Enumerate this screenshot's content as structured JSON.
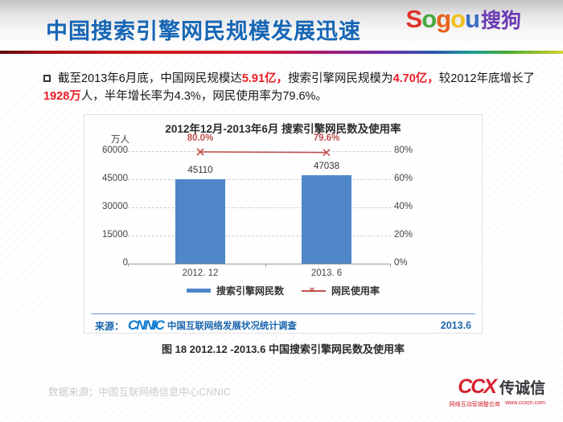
{
  "header": {
    "title": "中国搜索引擎网民规模发展迅速",
    "logo": {
      "word": [
        {
          "ch": "S",
          "color": "#e0342b"
        },
        {
          "ch": "o",
          "color": "#44a93c"
        },
        {
          "ch": "g",
          "color": "#e8611c"
        },
        {
          "ch": "o",
          "color": "#f2c01d"
        },
        {
          "ch": "u",
          "color": "#3a6cc4"
        }
      ],
      "cn": "搜狗",
      "cn_color": "#6a3ab2"
    }
  },
  "summary": {
    "segments": [
      {
        "text": "截至2013年6月底，中国网民规模达",
        "highlight": false
      },
      {
        "text": "5.91亿，",
        "highlight": true
      },
      {
        "text": "搜索引擎网民规模为",
        "highlight": false
      },
      {
        "text": "4.70亿，",
        "highlight": true
      },
      {
        "text": "较2012年底增长了",
        "highlight": false
      },
      {
        "text": "1928万",
        "highlight": true
      },
      {
        "text": "人，半年增长率为4.3%，网民使用率为79.6%。",
        "highlight": false
      }
    ]
  },
  "chart_data": {
    "type": "bar",
    "combo_line_overlay": true,
    "title": "2012年12月-2013年6月 搜索引擎网民数及使用率",
    "unit_label": "万人",
    "categories": [
      "2012. 12",
      "2013. 6"
    ],
    "series": [
      {
        "name": "搜索引擎网民数",
        "type": "bar",
        "axis": "left",
        "values": [
          45110,
          47038
        ],
        "color": "#4e86c8"
      },
      {
        "name": "网民使用率",
        "type": "line",
        "axis": "right",
        "values": [
          80.0,
          79.6
        ],
        "labels": [
          "80.0%",
          "79.6%"
        ],
        "color": "#c0504d",
        "marker": "x"
      }
    ],
    "left_axis": {
      "tick_labels": [
        "60000",
        "45000",
        "30000",
        "15000",
        "0"
      ],
      "top_value": 60000
    },
    "right_axis": {
      "tick_labels": [
        "80%",
        "60%",
        "40%",
        "20%",
        "0%"
      ],
      "top_value": 80
    },
    "grid": true,
    "legend_position": "bottom",
    "source": {
      "prefix": "来源：",
      "logo": "CNNIC",
      "text": "中国互联网络发展状况统计调查",
      "date": "2013.6"
    }
  },
  "caption": "图 18   2012.12 -2013.6 中国搜索引擎网民数及使用率",
  "footer": {
    "watermark": "数据来源：中国互联网络信息中心CNNIC",
    "ccx": {
      "logo": "CCX",
      "name": "传诚信",
      "tagline": "网络互动营销整合商",
      "url": "www.ccxcn.com"
    }
  }
}
